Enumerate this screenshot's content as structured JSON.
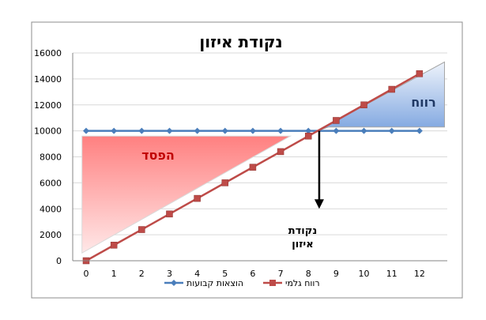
{
  "chart_data": {
    "type": "line",
    "title": "נקודת איזון",
    "x": [
      0,
      1,
      2,
      3,
      4,
      5,
      6,
      7,
      8,
      9,
      10,
      11,
      12
    ],
    "xlim": [
      0,
      13
    ],
    "ylim": [
      0,
      16000
    ],
    "yticks": [
      0,
      2000,
      4000,
      6000,
      8000,
      10000,
      12000,
      14000,
      16000
    ],
    "grid": true,
    "legend_position": "bottom",
    "series": [
      {
        "name": "הוצאות קבועות",
        "color": "#4a7ebb",
        "marker": "diamond",
        "values": [
          10000,
          10000,
          10000,
          10000,
          10000,
          10000,
          10000,
          10000,
          10000,
          10000,
          10000,
          10000,
          10000
        ]
      },
      {
        "name": "רווח גלמי",
        "color": "#be4b48",
        "marker": "square",
        "values": [
          0,
          1200,
          2400,
          3600,
          4800,
          6000,
          7200,
          8400,
          9600,
          10800,
          12000,
          13200,
          14400
        ]
      }
    ],
    "annotations": {
      "loss_label": "הפסד",
      "profit_label": "רווח",
      "breakeven_label_line1": "נקודת",
      "breakeven_label_line2": "איזון"
    }
  }
}
